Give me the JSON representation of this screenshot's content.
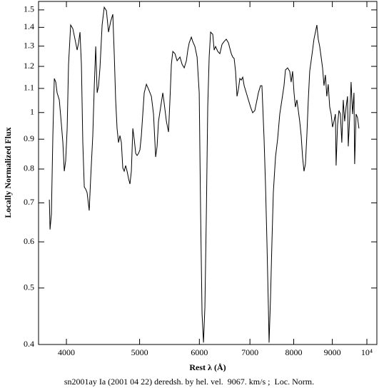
{
  "chart_data": {
    "type": "line",
    "xlabel": "Rest λ (Å)",
    "ylabel": "Locally Normalized Flux",
    "caption": "sn2001ay Ia (2001 04 22) deredsh. by hel. vel.  9067. km/s ;  Loc. Norm.",
    "xlog": true,
    "ylog": true,
    "color": "#000000",
    "xlim": [
      3674,
      10309
    ],
    "ylim": [
      0.4,
      1.551
    ],
    "xticks": [
      4000,
      5000,
      6000,
      7000,
      8000,
      9000,
      {
        "value": 10000,
        "label": "10⁴"
      }
    ],
    "yticks": [
      0.4,
      0.5,
      0.6,
      0.7,
      0.8,
      0.9,
      1,
      1.1,
      1.2,
      1.3,
      1.4,
      1.5
    ],
    "x": [
      3797,
      3805,
      3821,
      3838,
      3855,
      3872,
      3888,
      3914,
      3940,
      3957,
      3974,
      3991,
      4009,
      4026,
      4052,
      4079,
      4106,
      4133,
      4151,
      4169,
      4187,
      4205,
      4224,
      4242,
      4260,
      4288,
      4307,
      4335,
      4355,
      4374,
      4393,
      4412,
      4431,
      4460,
      4489,
      4519,
      4548,
      4578,
      4608,
      4628,
      4648,
      4668,
      4689,
      4709,
      4730,
      4750,
      4771,
      4792,
      4813,
      4834,
      4855,
      4876,
      4898,
      4919,
      4941,
      4962,
      4984,
      5005,
      5027,
      5049,
      5071,
      5105,
      5138,
      5161,
      5183,
      5217,
      5251,
      5274,
      5297,
      5332,
      5367,
      5390,
      5426,
      5461,
      5485,
      5509,
      5533,
      5569,
      5606,
      5655,
      5692,
      5729,
      5767,
      5792,
      5817,
      5855,
      5880,
      5919,
      5958,
      5997,
      6023,
      6049,
      6076,
      6102,
      6129,
      6155,
      6182,
      6209,
      6250,
      6277,
      6304,
      6346,
      6387,
      6429,
      6471,
      6513,
      6556,
      6585,
      6613,
      6642,
      6671,
      6700,
      6730,
      6759,
      6788,
      6818,
      6848,
      6878,
      6923,
      6968,
      7013,
      7059,
      7105,
      7152,
      7183,
      7230,
      7261,
      7309,
      7341,
      7373,
      7405,
      7421,
      7453,
      7486,
      7518,
      7568,
      7617,
      7667,
      7717,
      7767,
      7801,
      7852,
      7903,
      7938,
      7973,
      8008,
      8042,
      8078,
      8113,
      8148,
      8184,
      8219,
      8255,
      8291,
      8327,
      8364,
      8400,
      8437,
      8474,
      8510,
      8548,
      8585,
      8622,
      8660,
      8698,
      8736,
      8774,
      8812,
      8850,
      8889,
      8928,
      8967,
      9006,
      9045,
      9085,
      9104,
      9144,
      9184,
      9224,
      9264,
      9305,
      9345,
      9386,
      9427,
      9448,
      9489,
      9530,
      9572,
      9614,
      9634,
      9676,
      9719,
      9761
    ],
    "values": [
      0.709,
      0.63,
      0.67,
      0.913,
      1.144,
      1.128,
      1.081,
      1.051,
      0.952,
      0.888,
      0.793,
      0.827,
      0.939,
      1.21,
      1.413,
      1.393,
      1.336,
      1.28,
      1.317,
      1.374,
      1.21,
      0.888,
      0.745,
      0.739,
      0.729,
      0.679,
      0.771,
      0.913,
      1.112,
      1.298,
      1.081,
      1.112,
      1.193,
      1.413,
      1.516,
      1.495,
      1.374,
      1.433,
      1.474,
      1.262,
      1.051,
      0.939,
      0.888,
      0.913,
      0.888,
      0.804,
      0.793,
      0.811,
      0.793,
      0.771,
      0.754,
      0.793,
      0.939,
      0.9,
      0.851,
      0.844,
      0.851,
      0.863,
      0.913,
      0.994,
      1.081,
      1.118,
      1.097,
      1.081,
      1.066,
      0.994,
      0.839,
      0.875,
      0.966,
      1.022,
      1.081,
      1.036,
      0.966,
      0.926,
      1.051,
      1.21,
      1.273,
      1.262,
      1.227,
      1.245,
      1.21,
      1.193,
      1.227,
      1.28,
      1.317,
      1.347,
      1.324,
      1.298,
      1.245,
      1.081,
      0.67,
      0.452,
      0.403,
      0.464,
      0.67,
      1.022,
      1.245,
      1.374,
      1.362,
      1.28,
      1.298,
      1.273,
      1.262,
      1.309,
      1.324,
      1.336,
      1.317,
      1.288,
      1.262,
      1.245,
      1.238,
      1.177,
      1.066,
      1.097,
      1.144,
      1.137,
      1.15,
      1.112,
      1.081,
      1.051,
      1.022,
      0.999,
      1.008,
      1.051,
      1.081,
      1.112,
      1.112,
      0.9,
      0.75,
      0.598,
      0.464,
      0.403,
      0.478,
      0.598,
      0.729,
      0.839,
      0.9,
      0.994,
      1.051,
      1.112,
      1.183,
      1.193,
      1.177,
      1.128,
      1.177,
      1.081,
      1.022,
      1.051,
      1.008,
      0.966,
      0.913,
      0.839,
      0.793,
      0.816,
      0.913,
      1.051,
      1.177,
      1.227,
      1.28,
      1.336,
      1.374,
      1.413,
      1.336,
      1.298,
      1.245,
      1.193,
      1.112,
      1.16,
      1.066,
      1.118,
      1.022,
      0.994,
      0.944,
      0.966,
      0.994,
      0.811,
      0.952,
      1.008,
      0.994,
      0.888,
      1.051,
      0.966,
      1.022,
      1.066,
      0.875,
      0.98,
      1.128,
      0.994,
      1.081,
      0.816,
      0.994,
      0.98,
      0.939
    ]
  }
}
